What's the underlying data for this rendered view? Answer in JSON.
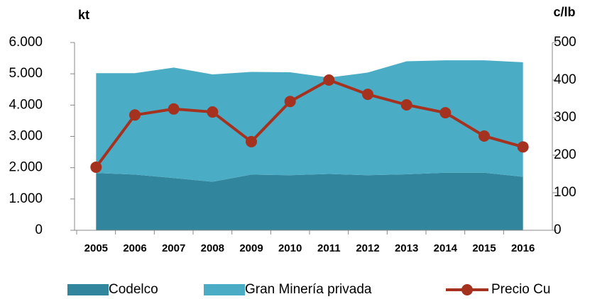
{
  "chart_data": {
    "type": "stacked_area_line",
    "y_label": "kt",
    "y2_label": "c/lb",
    "categories": [
      "2005",
      "2006",
      "2007",
      "2008",
      "2009",
      "2010",
      "2011",
      "2012",
      "2013",
      "2014",
      "2015",
      "2016"
    ],
    "series": [
      {
        "name": "Codelco",
        "color": "#31859c",
        "values": [
          1830,
          1780,
          1670,
          1550,
          1780,
          1760,
          1800,
          1760,
          1790,
          1840,
          1840,
          1710
        ]
      },
      {
        "name": "Gran Minería privada",
        "color": "#4bacc6",
        "values": [
          3190,
          3240,
          3530,
          3430,
          3280,
          3290,
          3080,
          3280,
          3610,
          3590,
          3590,
          3660
        ]
      },
      {
        "name": "Precio Cu",
        "color": "#a5321f",
        "axis": "y2",
        "values": [
          168,
          307,
          323,
          315,
          236,
          343,
          400,
          362,
          334,
          313,
          251,
          222
        ]
      }
    ],
    "ylim": [
      0,
      6000
    ],
    "yticks": [
      {
        "value": 0,
        "label": "0"
      },
      {
        "value": 1000,
        "label": "1.000"
      },
      {
        "value": 2000,
        "label": "2.000"
      },
      {
        "value": 3000,
        "label": "3.000"
      },
      {
        "value": 4000,
        "label": "4.000"
      },
      {
        "value": 5000,
        "label": "5.000"
      },
      {
        "value": 6000,
        "label": "6.000"
      }
    ],
    "y2lim": [
      0,
      500
    ],
    "y2ticks": [
      0,
      100,
      200,
      300,
      400,
      500
    ],
    "legend": "bottom"
  }
}
